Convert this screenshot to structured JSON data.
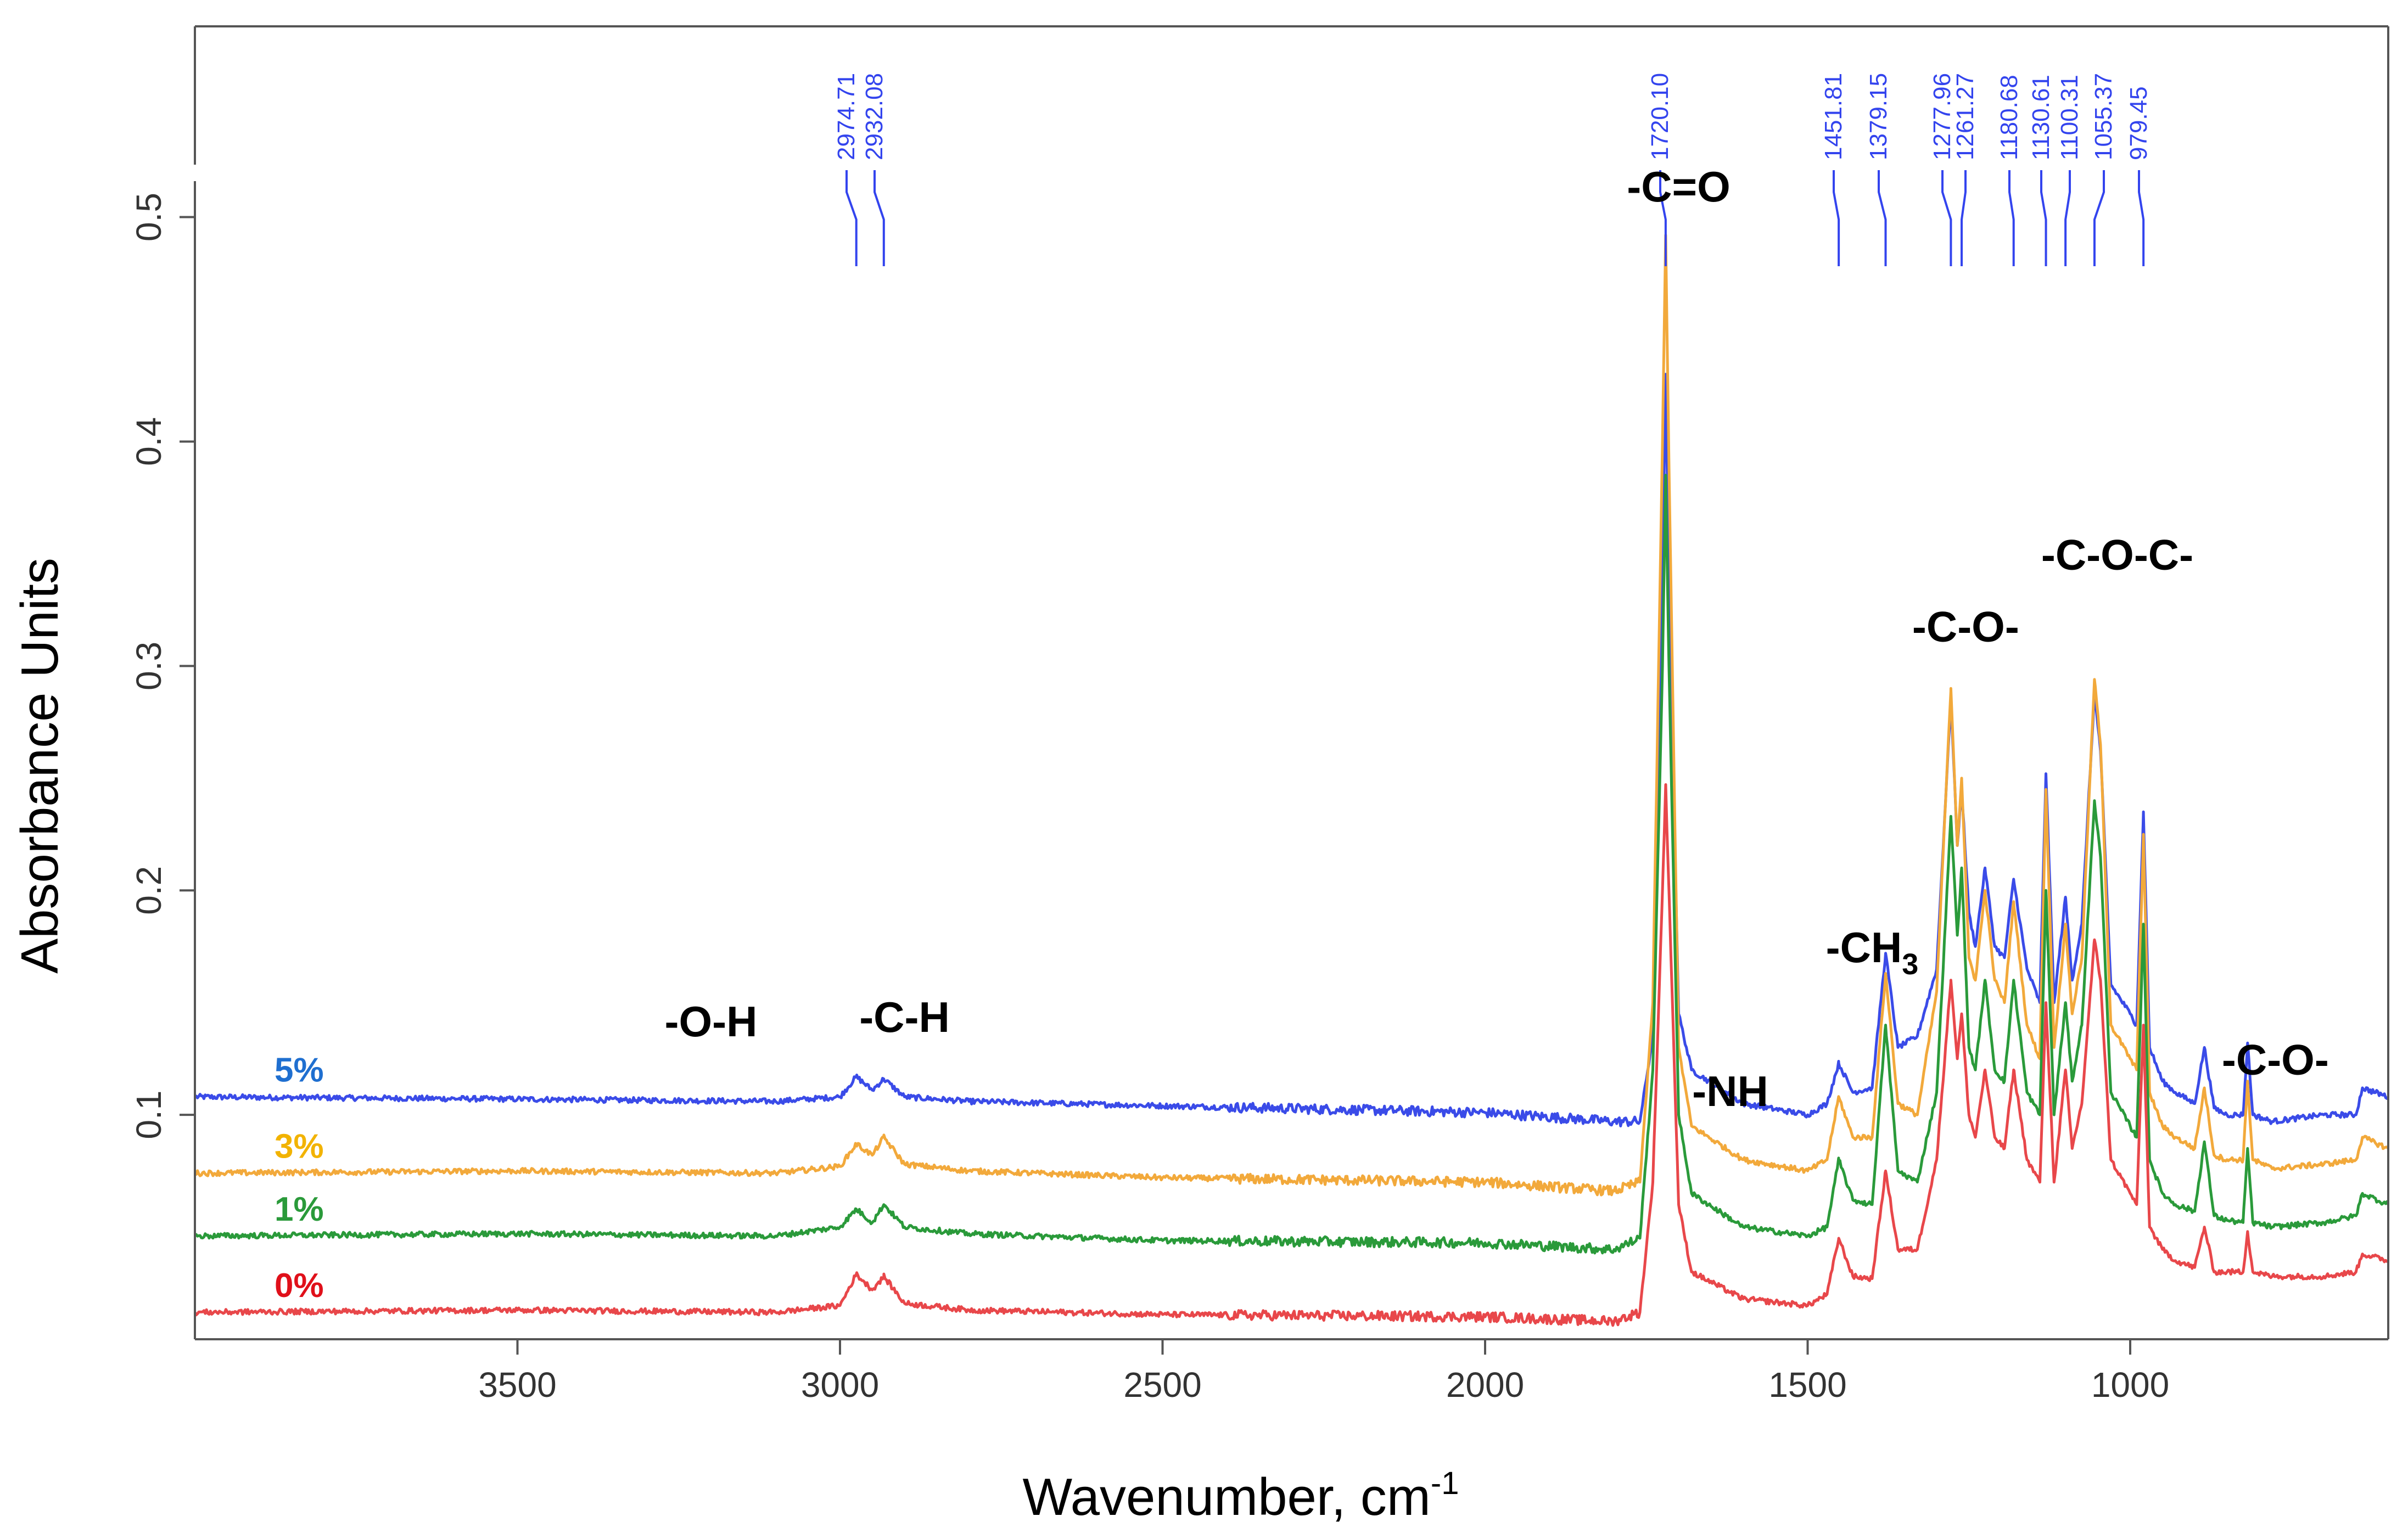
{
  "chart_data": {
    "type": "line",
    "title": "",
    "xlabel": "Wavenumber, cm",
    "xlabel_sup": "-1",
    "ylabel": "Absorbance Units",
    "xlim": [
      4000,
      600
    ],
    "ylim": [
      0.0,
      0.585
    ],
    "x_ticks": [
      {
        "value": 3500,
        "label": "3500"
      },
      {
        "value": 3000,
        "label": "3000"
      },
      {
        "value": 2500,
        "label": "2500"
      },
      {
        "value": 2000,
        "label": "2000"
      },
      {
        "value": 1500,
        "label": "1500"
      },
      {
        "value": 1000,
        "label": "1000"
      }
    ],
    "y_ticks": [
      {
        "value": 0.1,
        "label": "0.1"
      },
      {
        "value": 0.2,
        "label": "0.2"
      },
      {
        "value": 0.3,
        "label": "0.3"
      },
      {
        "value": 0.4,
        "label": "0.4"
      },
      {
        "value": 0.5,
        "label": "0.5"
      }
    ],
    "peak_color": "#3344ee",
    "peak_labels": [
      {
        "label": "2974.71",
        "x": 2974.71
      },
      {
        "label": "2932.08",
        "x": 2932.08
      },
      {
        "label": "1720.10",
        "x": 1720.1
      },
      {
        "label": "1451.81",
        "x": 1451.81
      },
      {
        "label": "1379.15",
        "x": 1379.15
      },
      {
        "label": "1277.96",
        "x": 1277.96
      },
      {
        "label": "1261.27",
        "x": 1261.27
      },
      {
        "label": "1180.68",
        "x": 1180.68
      },
      {
        "label": "1130.61",
        "x": 1130.61
      },
      {
        "label": "1100.31",
        "x": 1100.31
      },
      {
        "label": "1055.37",
        "x": 1055.37
      },
      {
        "label": "979.45",
        "x": 979.45
      }
    ],
    "group_labels": [
      {
        "text": "-O-H",
        "x": 3200,
        "y": 0.135
      },
      {
        "text": "-C-H",
        "x": 2900,
        "y": 0.137
      },
      {
        "text": "-C=O",
        "x": 1700,
        "y": 0.507
      },
      {
        "text": "-NH",
        "x": 1620,
        "y": 0.104
      },
      {
        "text": "-CH",
        "sub": "3",
        "x": 1400,
        "y": 0.168
      },
      {
        "text": "-C-O-",
        "x": 1255,
        "y": 0.311
      },
      {
        "text": "-C-O-C-",
        "x": 1020,
        "y": 0.343
      },
      {
        "text": "-C-O-",
        "x": 775,
        "y": 0.118
      }
    ],
    "series": [
      {
        "name": "5%",
        "color": "#3a4be8",
        "points": [
          [
            4000,
            0.108
          ],
          [
            3500,
            0.107
          ],
          [
            3100,
            0.106
          ],
          [
            3000,
            0.108
          ],
          [
            2974.71,
            0.117
          ],
          [
            2950,
            0.111
          ],
          [
            2932.08,
            0.116
          ],
          [
            2900,
            0.108
          ],
          [
            2800,
            0.106
          ],
          [
            2500,
            0.104
          ],
          [
            2000,
            0.101
          ],
          [
            1800,
            0.097
          ],
          [
            1760,
            0.097
          ],
          [
            1740,
            0.135
          ],
          [
            1725,
            0.34
          ],
          [
            1720.1,
            0.43
          ],
          [
            1715,
            0.34
          ],
          [
            1700,
            0.145
          ],
          [
            1680,
            0.12
          ],
          [
            1600,
            0.105
          ],
          [
            1500,
            0.1
          ],
          [
            1470,
            0.105
          ],
          [
            1451.81,
            0.123
          ],
          [
            1430,
            0.11
          ],
          [
            1400,
            0.112
          ],
          [
            1379.15,
            0.172
          ],
          [
            1360,
            0.13
          ],
          [
            1330,
            0.135
          ],
          [
            1300,
            0.165
          ],
          [
            1277.96,
            0.285
          ],
          [
            1268,
            0.22
          ],
          [
            1261.27,
            0.245
          ],
          [
            1250,
            0.19
          ],
          [
            1240,
            0.175
          ],
          [
            1225,
            0.21
          ],
          [
            1210,
            0.175
          ],
          [
            1195,
            0.17
          ],
          [
            1180.68,
            0.205
          ],
          [
            1160,
            0.165
          ],
          [
            1140,
            0.15
          ],
          [
            1130.61,
            0.252
          ],
          [
            1118,
            0.15
          ],
          [
            1100.31,
            0.197
          ],
          [
            1090,
            0.16
          ],
          [
            1075,
            0.185
          ],
          [
            1055.37,
            0.288
          ],
          [
            1046,
            0.262
          ],
          [
            1030,
            0.158
          ],
          [
            1000,
            0.145
          ],
          [
            990,
            0.14
          ],
          [
            979.45,
            0.235
          ],
          [
            970,
            0.13
          ],
          [
            950,
            0.115
          ],
          [
            930,
            0.11
          ],
          [
            900,
            0.105
          ],
          [
            885,
            0.13
          ],
          [
            870,
            0.103
          ],
          [
            850,
            0.1
          ],
          [
            825,
            0.1
          ],
          [
            818,
            0.132
          ],
          [
            810,
            0.1
          ],
          [
            780,
            0.097
          ],
          [
            700,
            0.1
          ],
          [
            650,
            0.1
          ],
          [
            640,
            0.112
          ],
          [
            600,
            0.108
          ]
        ]
      },
      {
        "name": "3%",
        "color": "#f2a93b",
        "points": [
          [
            4000,
            0.074
          ],
          [
            3500,
            0.075
          ],
          [
            3100,
            0.074
          ],
          [
            3000,
            0.077
          ],
          [
            2974.71,
            0.087
          ],
          [
            2950,
            0.082
          ],
          [
            2932.08,
            0.09
          ],
          [
            2900,
            0.078
          ],
          [
            2800,
            0.075
          ],
          [
            2500,
            0.072
          ],
          [
            2000,
            0.07
          ],
          [
            1800,
            0.066
          ],
          [
            1760,
            0.07
          ],
          [
            1740,
            0.15
          ],
          [
            1725,
            0.4
          ],
          [
            1720.1,
            0.492
          ],
          [
            1715,
            0.39
          ],
          [
            1700,
            0.13
          ],
          [
            1680,
            0.095
          ],
          [
            1600,
            0.08
          ],
          [
            1500,
            0.075
          ],
          [
            1470,
            0.08
          ],
          [
            1451.81,
            0.108
          ],
          [
            1430,
            0.09
          ],
          [
            1400,
            0.09
          ],
          [
            1379.15,
            0.163
          ],
          [
            1360,
            0.105
          ],
          [
            1330,
            0.1
          ],
          [
            1300,
            0.155
          ],
          [
            1277.96,
            0.29
          ],
          [
            1268,
            0.22
          ],
          [
            1261.27,
            0.25
          ],
          [
            1250,
            0.17
          ],
          [
            1240,
            0.16
          ],
          [
            1225,
            0.2
          ],
          [
            1210,
            0.16
          ],
          [
            1195,
            0.15
          ],
          [
            1180.68,
            0.195
          ],
          [
            1160,
            0.14
          ],
          [
            1140,
            0.125
          ],
          [
            1130.61,
            0.245
          ],
          [
            1118,
            0.13
          ],
          [
            1100.31,
            0.185
          ],
          [
            1090,
            0.145
          ],
          [
            1075,
            0.17
          ],
          [
            1055.37,
            0.294
          ],
          [
            1046,
            0.265
          ],
          [
            1030,
            0.14
          ],
          [
            1000,
            0.125
          ],
          [
            990,
            0.12
          ],
          [
            979.45,
            0.225
          ],
          [
            970,
            0.11
          ],
          [
            950,
            0.095
          ],
          [
            930,
            0.09
          ],
          [
            900,
            0.085
          ],
          [
            885,
            0.112
          ],
          [
            870,
            0.082
          ],
          [
            850,
            0.08
          ],
          [
            825,
            0.08
          ],
          [
            818,
            0.115
          ],
          [
            810,
            0.08
          ],
          [
            780,
            0.076
          ],
          [
            700,
            0.078
          ],
          [
            650,
            0.08
          ],
          [
            640,
            0.09
          ],
          [
            600,
            0.085
          ]
        ]
      },
      {
        "name": "1%",
        "color": "#2a9a3a",
        "points": [
          [
            4000,
            0.046
          ],
          [
            3500,
            0.047
          ],
          [
            3100,
            0.046
          ],
          [
            3000,
            0.05
          ],
          [
            2974.71,
            0.058
          ],
          [
            2950,
            0.052
          ],
          [
            2932.08,
            0.06
          ],
          [
            2900,
            0.05
          ],
          [
            2800,
            0.047
          ],
          [
            2500,
            0.044
          ],
          [
            2000,
            0.043
          ],
          [
            1800,
            0.04
          ],
          [
            1760,
            0.045
          ],
          [
            1740,
            0.12
          ],
          [
            1725,
            0.3
          ],
          [
            1720.1,
            0.385
          ],
          [
            1715,
            0.3
          ],
          [
            1700,
            0.1
          ],
          [
            1680,
            0.065
          ],
          [
            1600,
            0.05
          ],
          [
            1500,
            0.046
          ],
          [
            1470,
            0.05
          ],
          [
            1451.81,
            0.08
          ],
          [
            1430,
            0.062
          ],
          [
            1400,
            0.06
          ],
          [
            1379.15,
            0.14
          ],
          [
            1360,
            0.075
          ],
          [
            1330,
            0.07
          ],
          [
            1300,
            0.11
          ],
          [
            1277.96,
            0.233
          ],
          [
            1268,
            0.18
          ],
          [
            1261.27,
            0.21
          ],
          [
            1250,
            0.13
          ],
          [
            1240,
            0.12
          ],
          [
            1225,
            0.16
          ],
          [
            1210,
            0.12
          ],
          [
            1195,
            0.115
          ],
          [
            1180.68,
            0.16
          ],
          [
            1160,
            0.11
          ],
          [
            1140,
            0.1
          ],
          [
            1130.61,
            0.2
          ],
          [
            1118,
            0.1
          ],
          [
            1100.31,
            0.15
          ],
          [
            1090,
            0.115
          ],
          [
            1075,
            0.14
          ],
          [
            1055.37,
            0.24
          ],
          [
            1046,
            0.215
          ],
          [
            1030,
            0.11
          ],
          [
            1000,
            0.095
          ],
          [
            990,
            0.09
          ],
          [
            979.45,
            0.185
          ],
          [
            970,
            0.08
          ],
          [
            950,
            0.065
          ],
          [
            930,
            0.06
          ],
          [
            900,
            0.057
          ],
          [
            885,
            0.088
          ],
          [
            870,
            0.055
          ],
          [
            850,
            0.053
          ],
          [
            825,
            0.052
          ],
          [
            818,
            0.085
          ],
          [
            810,
            0.052
          ],
          [
            780,
            0.05
          ],
          [
            700,
            0.052
          ],
          [
            650,
            0.055
          ],
          [
            640,
            0.065
          ],
          [
            600,
            0.06
          ]
        ]
      },
      {
        "name": "0%",
        "color": "#e8474a",
        "points": [
          [
            4000,
            0.012
          ],
          [
            3500,
            0.013
          ],
          [
            3100,
            0.012
          ],
          [
            3000,
            0.015
          ],
          [
            2974.71,
            0.029
          ],
          [
            2950,
            0.022
          ],
          [
            2932.08,
            0.028
          ],
          [
            2900,
            0.016
          ],
          [
            2800,
            0.013
          ],
          [
            2500,
            0.011
          ],
          [
            2000,
            0.01
          ],
          [
            1800,
            0.008
          ],
          [
            1760,
            0.012
          ],
          [
            1740,
            0.07
          ],
          [
            1725,
            0.2
          ],
          [
            1720.1,
            0.247
          ],
          [
            1715,
            0.2
          ],
          [
            1700,
            0.06
          ],
          [
            1680,
            0.03
          ],
          [
            1600,
            0.018
          ],
          [
            1500,
            0.015
          ],
          [
            1470,
            0.02
          ],
          [
            1451.81,
            0.045
          ],
          [
            1430,
            0.028
          ],
          [
            1400,
            0.027
          ],
          [
            1379.15,
            0.075
          ],
          [
            1360,
            0.04
          ],
          [
            1330,
            0.04
          ],
          [
            1300,
            0.08
          ],
          [
            1277.96,
            0.16
          ],
          [
            1268,
            0.125
          ],
          [
            1261.27,
            0.145
          ],
          [
            1250,
            0.1
          ],
          [
            1240,
            0.09
          ],
          [
            1225,
            0.12
          ],
          [
            1210,
            0.09
          ],
          [
            1195,
            0.085
          ],
          [
            1180.68,
            0.12
          ],
          [
            1160,
            0.08
          ],
          [
            1140,
            0.07
          ],
          [
            1130.61,
            0.15
          ],
          [
            1118,
            0.07
          ],
          [
            1100.31,
            0.12
          ],
          [
            1090,
            0.085
          ],
          [
            1075,
            0.105
          ],
          [
            1055.37,
            0.178
          ],
          [
            1046,
            0.16
          ],
          [
            1030,
            0.08
          ],
          [
            1000,
            0.065
          ],
          [
            990,
            0.06
          ],
          [
            979.45,
            0.14
          ],
          [
            970,
            0.05
          ],
          [
            950,
            0.04
          ],
          [
            930,
            0.035
          ],
          [
            900,
            0.032
          ],
          [
            885,
            0.05
          ],
          [
            870,
            0.03
          ],
          [
            850,
            0.03
          ],
          [
            825,
            0.03
          ],
          [
            818,
            0.048
          ],
          [
            810,
            0.03
          ],
          [
            780,
            0.028
          ],
          [
            700,
            0.028
          ],
          [
            650,
            0.03
          ],
          [
            640,
            0.038
          ],
          [
            600,
            0.035
          ]
        ]
      }
    ]
  }
}
